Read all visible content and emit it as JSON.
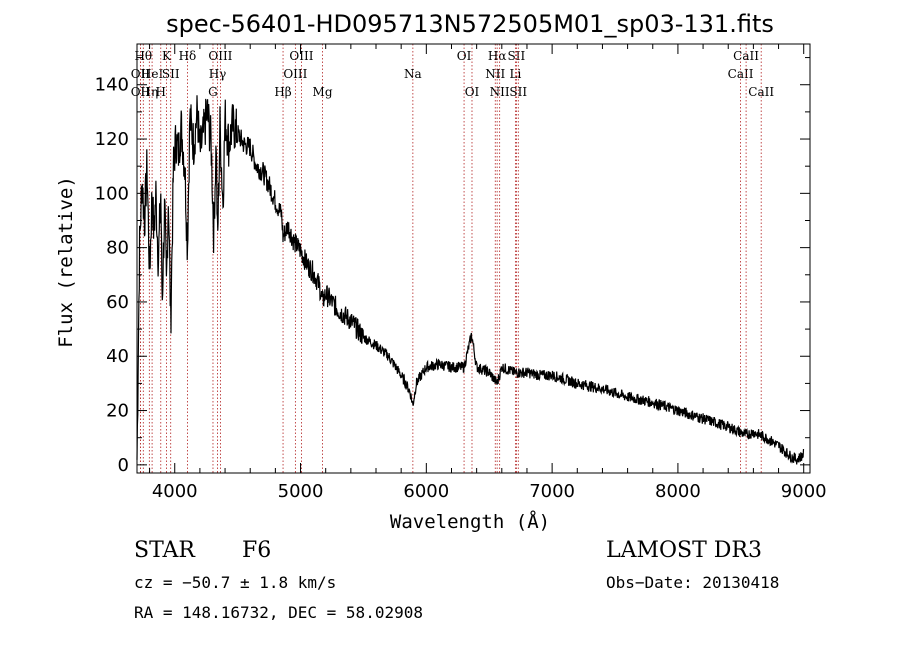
{
  "chart_data": {
    "type": "line",
    "title": "spec-56401-HD095713N572505M01_sp03-131.fits",
    "xlabel": "Wavelength (Å)",
    "ylabel": "Flux (relative)",
    "xlim": [
      3700,
      9050
    ],
    "ylim": [
      -3,
      155
    ],
    "xticks": [
      4000,
      5000,
      6000,
      7000,
      8000,
      9000
    ],
    "yticks": [
      0,
      20,
      40,
      60,
      80,
      100,
      120,
      140
    ],
    "line_color": "#000000",
    "marker_color": "#b22222",
    "series": [
      {
        "name": "flux",
        "x": [
          3700,
          3720,
          3740,
          3760,
          3780,
          3800,
          3820,
          3835,
          3850,
          3870,
          3889,
          3900,
          3920,
          3934,
          3950,
          3968,
          3990,
          4010,
          4030,
          4050,
          4080,
          4101,
          4120,
          4150,
          4180,
          4200,
          4230,
          4260,
          4290,
          4310,
          4330,
          4340,
          4360,
          4383,
          4400,
          4430,
          4460,
          4500,
          4550,
          4600,
          4650,
          4700,
          4750,
          4800,
          4850,
          4861,
          4900,
          4950,
          5000,
          5050,
          5100,
          5150,
          5175,
          5200,
          5300,
          5400,
          5500,
          5600,
          5700,
          5800,
          5870,
          5893,
          5920,
          6000,
          6100,
          6200,
          6300,
          6360,
          6400,
          6500,
          6563,
          6600,
          6700,
          6800,
          6900,
          7000,
          7200,
          7400,
          7600,
          7800,
          8000,
          8200,
          8400,
          8542,
          8600,
          8700,
          8800,
          8850,
          8900,
          8950,
          9000
        ],
        "y": [
          2,
          80,
          105,
          90,
          110,
          70,
          100,
          85,
          100,
          75,
          100,
          60,
          95,
          65,
          100,
          52,
          110,
          120,
          115,
          125,
          110,
          80,
          128,
          118,
          130,
          115,
          122,
          130,
          118,
          85,
          120,
          80,
          125,
          96,
          128,
          118,
          125,
          122,
          118,
          117,
          110,
          108,
          103,
          97,
          92,
          84,
          88,
          82,
          79,
          74,
          71,
          66,
          60,
          63,
          57,
          53,
          47,
          44,
          40,
          33,
          27,
          22,
          30,
          36,
          37,
          36,
          36,
          48,
          36,
          34,
          30,
          36,
          34,
          34,
          33,
          33,
          30,
          28,
          25,
          23,
          20,
          17,
          14,
          11,
          12,
          10,
          7,
          5,
          3,
          2,
          4
        ]
      }
    ],
    "line_markers": [
      {
        "wavelength": 3750,
        "label": "Hθ",
        "row": 0
      },
      {
        "wavelength": 3727,
        "label": "OII",
        "row": 1
      },
      {
        "wavelength": 3727,
        "label": "OII",
        "row": 2
      },
      {
        "wavelength": 3798,
        "label": "Hη",
        "row": 2
      },
      {
        "wavelength": 3820,
        "label": "HeI",
        "row": 1
      },
      {
        "wavelength": 3889,
        "label": "H",
        "row": 2
      },
      {
        "wavelength": 3934,
        "label": "K",
        "row": 0
      },
      {
        "wavelength": 3968,
        "label": "SII",
        "row": 1
      },
      {
        "wavelength": 4101,
        "label": "Hδ",
        "row": 0
      },
      {
        "wavelength": 4304,
        "label": "G",
        "row": 2
      },
      {
        "wavelength": 4340,
        "label": "Hγ",
        "row": 1
      },
      {
        "wavelength": 4363,
        "label": "OIII",
        "row": 0
      },
      {
        "wavelength": 4861,
        "label": "Hβ",
        "row": 2
      },
      {
        "wavelength": 4959,
        "label": "OIII",
        "row": 1
      },
      {
        "wavelength": 5007,
        "label": "OIII",
        "row": 0
      },
      {
        "wavelength": 5175,
        "label": "Mg",
        "row": 2
      },
      {
        "wavelength": 5893,
        "label": "Na",
        "row": 1
      },
      {
        "wavelength": 6300,
        "label": "OI",
        "row": 0
      },
      {
        "wavelength": 6363,
        "label": "OI",
        "row": 2
      },
      {
        "wavelength": 6548,
        "label": "NII",
        "row": 1
      },
      {
        "wavelength": 6563,
        "label": "Hα",
        "row": 0
      },
      {
        "wavelength": 6583,
        "label": "NII",
        "row": 2
      },
      {
        "wavelength": 6708,
        "label": "Li",
        "row": 1
      },
      {
        "wavelength": 6716,
        "label": "SII",
        "row": 0
      },
      {
        "wavelength": 6731,
        "label": "SII",
        "row": 2
      },
      {
        "wavelength": 8498,
        "label": "CaII",
        "row": 1
      },
      {
        "wavelength": 8542,
        "label": "CaII",
        "row": 0
      },
      {
        "wavelength": 8662,
        "label": "CaII",
        "row": 2
      }
    ]
  },
  "info": {
    "object_class": "STAR",
    "subclass": "F6",
    "survey": "LAMOST DR3",
    "cz": "cz = −50.7 ± 1.8 km/s",
    "obs_date": "Obs−Date: 20130418",
    "coords": "RA = 148.16732, DEC =  58.02908"
  }
}
